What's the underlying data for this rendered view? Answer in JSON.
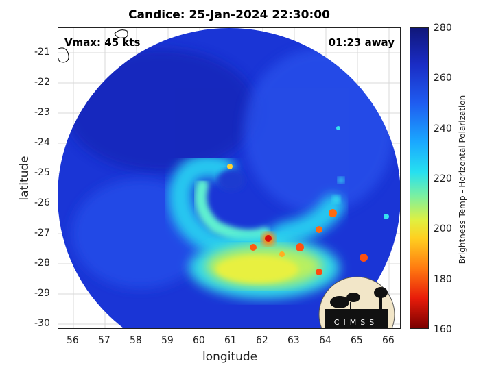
{
  "title": "Candice: 25-Jan-2024 22:30:00",
  "vmax": "Vmax: 45 kts",
  "away": "01:23 away",
  "xlabel": "longitude",
  "ylabel": "latitude",
  "x_ticks": [
    "56",
    "57",
    "58",
    "59",
    "60",
    "61",
    "62",
    "63",
    "64",
    "65",
    "66"
  ],
  "y_ticks": [
    "-21",
    "-22",
    "-23",
    "-24",
    "-25",
    "-26",
    "-27",
    "-28",
    "-29",
    "-30"
  ],
  "colorbar": {
    "label": "Brightness Temp - Horizontal Polarization",
    "ticks": [
      "280",
      "260",
      "240",
      "220",
      "200",
      "180",
      "160"
    ]
  },
  "logo_text": "CIMSS",
  "colors": {
    "background_cold": "#1a2cc4",
    "band_cyan": "#26e0f0",
    "band_yellow": "#e0f040",
    "core_red": "#e81c0a"
  }
}
